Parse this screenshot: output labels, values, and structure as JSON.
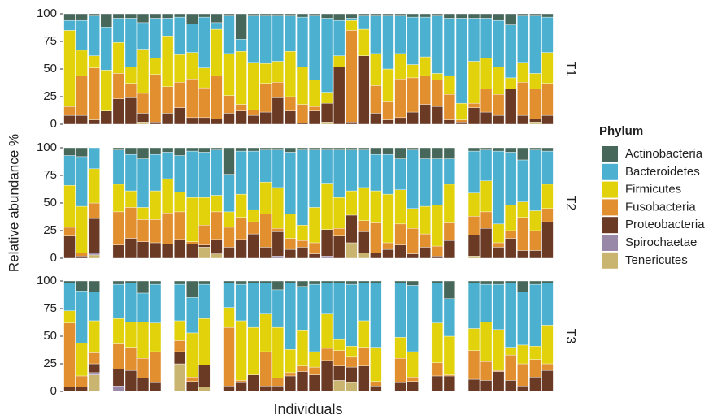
{
  "chart_data": {
    "type": "bar",
    "stacked": true,
    "y_label": "Relative abundance %",
    "x_label": "Individuals",
    "legend_title": "Phylum",
    "categories": [
      null,
      null,
      null,
      null,
      null,
      null,
      null,
      null,
      null,
      null,
      null,
      null,
      null,
      null,
      null,
      null,
      null,
      null,
      null,
      null,
      null,
      null,
      null,
      null,
      null,
      null,
      null,
      null,
      null,
      null,
      null,
      null,
      null,
      null,
      null,
      null,
      null,
      null,
      null,
      null
    ],
    "ylim": [
      0,
      100
    ],
    "yticks": [
      0,
      25,
      50,
      75,
      100
    ],
    "series": [
      {
        "name": "Actinobacteria",
        "color": "#46675a"
      },
      {
        "name": "Bacteroidetes",
        "color": "#4cb1d0"
      },
      {
        "name": "Firmicutes",
        "color": "#e1d20c"
      },
      {
        "name": "Fusobacteria",
        "color": "#e18f2f"
      },
      {
        "name": "Proteobacteria",
        "color": "#6b3a24"
      },
      {
        "name": "Spirochaetae",
        "color": "#9a88a9"
      },
      {
        "name": "Tenericutes",
        "color": "#c9b570"
      }
    ],
    "panels": [
      {
        "label": "T1",
        "values": [
          [
            6,
            6,
            2,
            12,
            4,
            4,
            8,
            4,
            4,
            3,
            9,
            3,
            8,
            2,
            23,
            2,
            2,
            2,
            2,
            3,
            2,
            4,
            6,
            4,
            2,
            2,
            2,
            2,
            3,
            3,
            2,
            4,
            4,
            4,
            4,
            6,
            10,
            2,
            2,
            3
          ],
          [
            9,
            27,
            36,
            39,
            22,
            44,
            24,
            36,
            16,
            34,
            26,
            46,
            6,
            34,
            11,
            42,
            43,
            41,
            32,
            45,
            58,
            67,
            32,
            2,
            12,
            34,
            48,
            34,
            43,
            36,
            52,
            52,
            77,
            39,
            36,
            42,
            48,
            42,
            52,
            32
          ],
          [
            69,
            23,
            11,
            37,
            28,
            15,
            40,
            15,
            46,
            25,
            24,
            18,
            42,
            38,
            48,
            43,
            18,
            19,
            41,
            34,
            24,
            10,
            10,
            9,
            24,
            29,
            29,
            23,
            12,
            17,
            6,
            17,
            15,
            38,
            28,
            25,
            10,
            18,
            14,
            28
          ],
          [
            8,
            36,
            47,
            0,
            23,
            13,
            18,
            43,
            24,
            23,
            35,
            27,
            39,
            16,
            6,
            5,
            26,
            14,
            13,
            17,
            4,
            0,
            0,
            83,
            0,
            25,
            17,
            35,
            31,
            26,
            24,
            23,
            2,
            4,
            21,
            19,
            0,
            30,
            27,
            29
          ],
          [
            8,
            8,
            4,
            12,
            23,
            24,
            8,
            2,
            10,
            15,
            6,
            6,
            5,
            10,
            12,
            8,
            11,
            24,
            12,
            1,
            12,
            17,
            52,
            2,
            62,
            10,
            4,
            6,
            11,
            18,
            16,
            4,
            2,
            15,
            11,
            8,
            32,
            8,
            3,
            8
          ],
          [
            0,
            0,
            0,
            0,
            0,
            0,
            0,
            0,
            0,
            0,
            0,
            0,
            0,
            0,
            0,
            0,
            0,
            0,
            0,
            0,
            0,
            0,
            0,
            0,
            0,
            0,
            0,
            0,
            0,
            0,
            0,
            0,
            0,
            0,
            0,
            0,
            0,
            0,
            0,
            0
          ],
          [
            0,
            0,
            0,
            0,
            0,
            0,
            2,
            0,
            0,
            0,
            0,
            0,
            0,
            0,
            0,
            0,
            0,
            0,
            0,
            0,
            0,
            2,
            0,
            0,
            0,
            0,
            0,
            0,
            0,
            0,
            0,
            0,
            0,
            0,
            0,
            0,
            0,
            0,
            2,
            0
          ]
        ]
      },
      {
        "label": "T2",
        "values": [
          [
            7,
            8,
            0,
            null,
            2,
            6,
            10,
            6,
            4,
            7,
            3,
            4,
            2,
            24,
            3,
            3,
            2,
            2,
            4,
            2,
            2,
            2,
            2,
            2,
            2,
            6,
            6,
            10,
            2,
            10,
            10,
            10,
            null,
            3,
            2,
            3,
            4,
            11,
            2,
            3
          ],
          [
            27,
            45,
            19,
            null,
            31,
            33,
            44,
            33,
            24,
            33,
            42,
            41,
            41,
            34,
            39,
            53,
            29,
            34,
            56,
            68,
            52,
            30,
            43,
            37,
            34,
            33,
            36,
            28,
            53,
            43,
            42,
            23,
            null,
            38,
            28,
            66,
            48,
            38,
            55,
            30
          ],
          [
            38,
            42,
            31,
            null,
            25,
            15,
            11,
            26,
            31,
            18,
            40,
            25,
            15,
            14,
            21,
            11,
            29,
            37,
            22,
            14,
            32,
            42,
            28,
            22,
            30,
            29,
            44,
            31,
            18,
            25,
            37,
            35,
            null,
            21,
            28,
            17,
            23,
            14,
            18,
            22
          ],
          [
            8,
            3,
            14,
            null,
            30,
            28,
            20,
            21,
            28,
            25,
            2,
            18,
            25,
            18,
            20,
            11,
            30,
            3,
            10,
            6,
            10,
            0,
            7,
            0,
            10,
            27,
            6,
            19,
            23,
            12,
            9,
            16,
            null,
            17,
            15,
            4,
            7,
            30,
            18,
            12
          ],
          [
            20,
            2,
            31,
            null,
            12,
            18,
            15,
            14,
            13,
            17,
            13,
            2,
            13,
            10,
            17,
            22,
            10,
            22,
            8,
            10,
            4,
            24,
            20,
            25,
            19,
            5,
            8,
            12,
            4,
            10,
            2,
            16,
            null,
            19,
            27,
            10,
            18,
            7,
            7,
            33
          ],
          [
            0,
            0,
            2,
            null,
            0,
            0,
            0,
            0,
            0,
            0,
            0,
            0,
            0,
            0,
            0,
            0,
            0,
            2,
            0,
            0,
            0,
            2,
            0,
            0,
            0,
            0,
            0,
            0,
            0,
            0,
            0,
            0,
            null,
            0,
            0,
            0,
            0,
            0,
            0,
            0
          ],
          [
            0,
            0,
            3,
            null,
            0,
            0,
            0,
            0,
            0,
            0,
            0,
            10,
            4,
            0,
            0,
            0,
            0,
            0,
            0,
            0,
            0,
            0,
            0,
            14,
            5,
            0,
            0,
            0,
            0,
            0,
            0,
            0,
            null,
            2,
            0,
            0,
            0,
            0,
            0,
            0
          ]
        ]
      },
      {
        "label": "T3",
        "values": [
          [
            2,
            9,
            10,
            null,
            3,
            2,
            11,
            3,
            null,
            3,
            15,
            3,
            null,
            2,
            3,
            2,
            2,
            8,
            2,
            5,
            3,
            2,
            2,
            3,
            2,
            2,
            null,
            2,
            4,
            null,
            2,
            16,
            null,
            2,
            3,
            3,
            2,
            10,
            3,
            2
          ],
          [
            25,
            47,
            26,
            null,
            31,
            35,
            26,
            35,
            null,
            33,
            32,
            31,
            null,
            22,
            33,
            40,
            28,
            34,
            60,
            40,
            61,
            28,
            51,
            56,
            34,
            58,
            null,
            49,
            60,
            null,
            36,
            34,
            null,
            41,
            34,
            41,
            58,
            48,
            56,
            38
          ],
          [
            11,
            30,
            29,
            null,
            23,
            23,
            33,
            26,
            null,
            18,
            40,
            42,
            null,
            18,
            54,
            43,
            34,
            46,
            21,
            32,
            14,
            31,
            10,
            10,
            24,
            31,
            null,
            19,
            23,
            null,
            36,
            35,
            null,
            20,
            36,
            37,
            7,
            17,
            12,
            35
          ],
          [
            58,
            10,
            10,
            null,
            23,
            21,
            18,
            28,
            null,
            10,
            4,
            0,
            null,
            53,
            2,
            0,
            31,
            7,
            3,
            5,
            7,
            11,
            14,
            9,
            17,
            4,
            null,
            22,
            4,
            null,
            12,
            1,
            null,
            26,
            17,
            1,
            23,
            20,
            16,
            6
          ],
          [
            4,
            4,
            8,
            null,
            15,
            19,
            12,
            8,
            null,
            11,
            9,
            20,
            null,
            5,
            8,
            15,
            5,
            5,
            14,
            18,
            15,
            28,
            13,
            14,
            23,
            5,
            null,
            8,
            9,
            null,
            14,
            14,
            null,
            11,
            10,
            18,
            10,
            5,
            13,
            19
          ],
          [
            0,
            0,
            2,
            null,
            5,
            0,
            0,
            0,
            null,
            0,
            0,
            0,
            null,
            0,
            0,
            0,
            0,
            0,
            0,
            0,
            0,
            0,
            0,
            0,
            0,
            0,
            null,
            0,
            0,
            null,
            0,
            0,
            null,
            0,
            0,
            0,
            0,
            0,
            0,
            0
          ],
          [
            0,
            0,
            15,
            null,
            0,
            0,
            0,
            0,
            null,
            25,
            0,
            4,
            null,
            0,
            0,
            0,
            0,
            0,
            0,
            0,
            0,
            0,
            10,
            8,
            0,
            0,
            null,
            0,
            0,
            null,
            0,
            0,
            null,
            0,
            0,
            0,
            0,
            0,
            0,
            0
          ]
        ]
      }
    ]
  }
}
